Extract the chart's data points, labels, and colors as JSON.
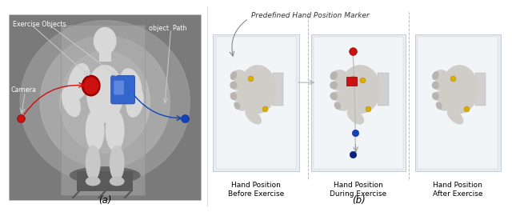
{
  "fig_width": 6.4,
  "fig_height": 2.65,
  "dpi": 100,
  "bg_color": "#ffffff",
  "panel_a_label": "(a)",
  "panel_b_label": "(b)",
  "label_exercise_objects": "Exercise Objects",
  "label_camera": "Camera",
  "label_object_path": "object  Path",
  "label_predefined": "Predefined Hand Position Marker",
  "label_before": "Hand Position\nBefore Exercise",
  "label_during": "Hand Position\nDuring Exercise",
  "label_after": "Hand Position\nAfter Exercise",
  "red_color": "#cc1111",
  "blue_color": "#1144bb",
  "yellow_color": "#ddaa00",
  "body_color": "#d8d8d8",
  "panel_a_outer_bg": "#7a7a7a",
  "panel_a_mid_bg": "#a0a0a0",
  "panel_a_inner_bg": "#b8b8b8",
  "panel_a_center_bg": "#c8c8c8",
  "hand_panel_bg": "#e8edf3",
  "hand_panel_inner": "#f2f5f8",
  "hand_color": "#d0cdc8",
  "hand_dark": "#b8b4b0",
  "divider_color": "#aaaaaa",
  "text_color_dark": "#333333",
  "text_color_white": "#ffffff"
}
